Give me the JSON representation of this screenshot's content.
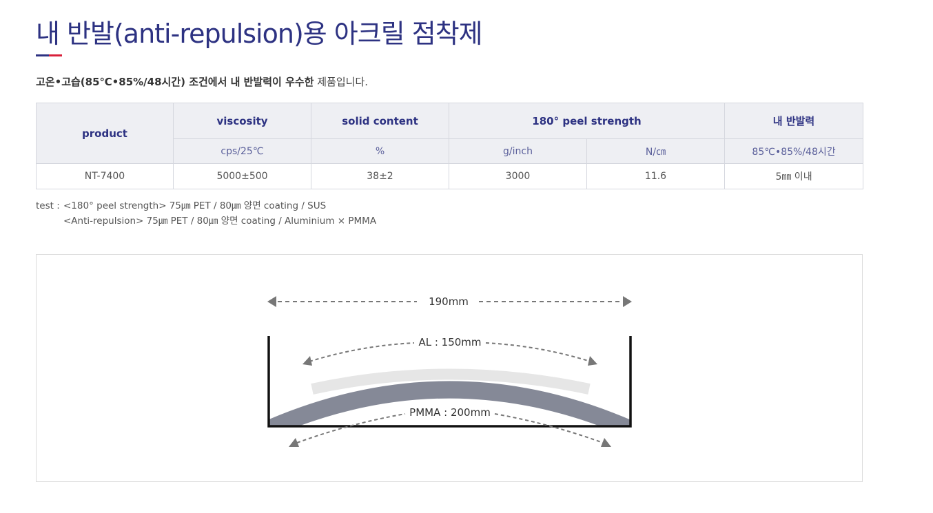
{
  "page": {
    "title": "내 반발(anti-repulsion)용 아크릴 점착제",
    "accent_colors": [
      "#2d3282",
      "#d8203a"
    ],
    "description_bold": "고온•고습(85℃•85%/48시간) 조건에서 내 반발력이 우수한",
    "description_rest": " 제품입니다."
  },
  "spec_table": {
    "headers": {
      "product": "product",
      "viscosity": "viscosity",
      "solid_content": "solid content",
      "peel_strength": "180° peel strength",
      "anti_repulsion": "내 반발력"
    },
    "units": {
      "viscosity": "cps/25℃",
      "solid_content": "%",
      "peel_g": "g/inch",
      "peel_n": "N/㎝",
      "anti_repulsion": "85℃•85%/48시간"
    },
    "rows": [
      {
        "product": "NT-7400",
        "viscosity": "5000±500",
        "solid_content": "38±2",
        "peel_g": "3000",
        "peel_n": "11.6",
        "anti_repulsion": "5㎜ 이내"
      }
    ]
  },
  "test_notes": {
    "label": "test :",
    "line1": "<180° peel strength> 75㎛ PET / 80㎛ 양면 coating / SUS",
    "line2": "<Anti-repulsion> 75㎛ PET / 80㎛ 양면 coating / Aluminium × PMMA"
  },
  "diagram": {
    "width_label": "190mm",
    "al_label": "AL : 150mm",
    "pmma_label": "PMMA : 200mm"
  }
}
